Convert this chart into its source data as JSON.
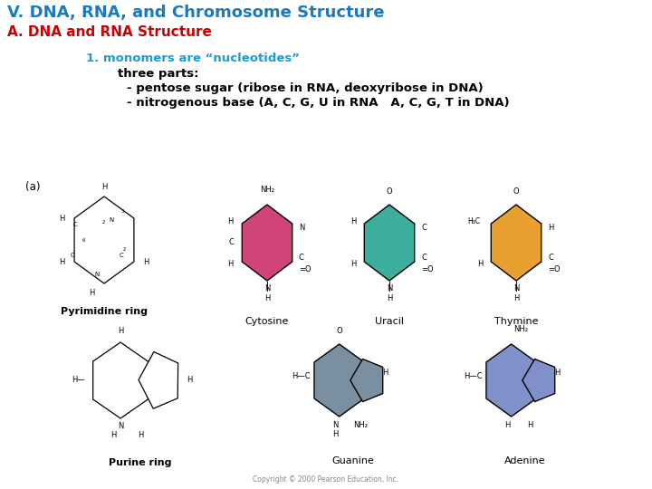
{
  "title": "V. DNA, RNA, and Chromosome Structure",
  "title_color": "#1B7ABF",
  "subtitle": "A. DNA and RNA Structure",
  "subtitle_color": "#CC0000",
  "title_fontsize": 13,
  "subtitle_fontsize": 11,
  "bg_color": "#FFFFFF",
  "line1": "1. monomers are “nucleotides”",
  "line1_color": "#1B9CD4",
  "line1_fontsize": 9.5,
  "line2": "three parts:",
  "line3": "- pentose sugar (ribose in RNA, deoxyribose in DNA)",
  "line4": "- nitrogenous base (A, C, G, U in RNA   A, C, G, T in DNA)",
  "text_fontsize": 9.5,
  "text_color": "#000000",
  "pyrimidine_label": "Pyrimidine ring",
  "purine_label": "Purine ring",
  "cytosine_label": "Cytosine",
  "uracil_label": "Uracil",
  "thymine_label": "Thymine",
  "guanine_label": "Guanine",
  "adenine_label": "Adenine",
  "cytosine_color": "#D0447A",
  "uracil_color": "#3BAF9B",
  "thymine_color": "#E8A030",
  "guanine_color": "#7A8FA0",
  "adenine_color": "#8090C8",
  "copyright": "Copyright © 2000 Pearson Education, Inc.",
  "label_a": "(a)",
  "struct_label_fontsize": 7.5,
  "mol_label_fontsize": 6,
  "ring_label_fontsize": 8
}
